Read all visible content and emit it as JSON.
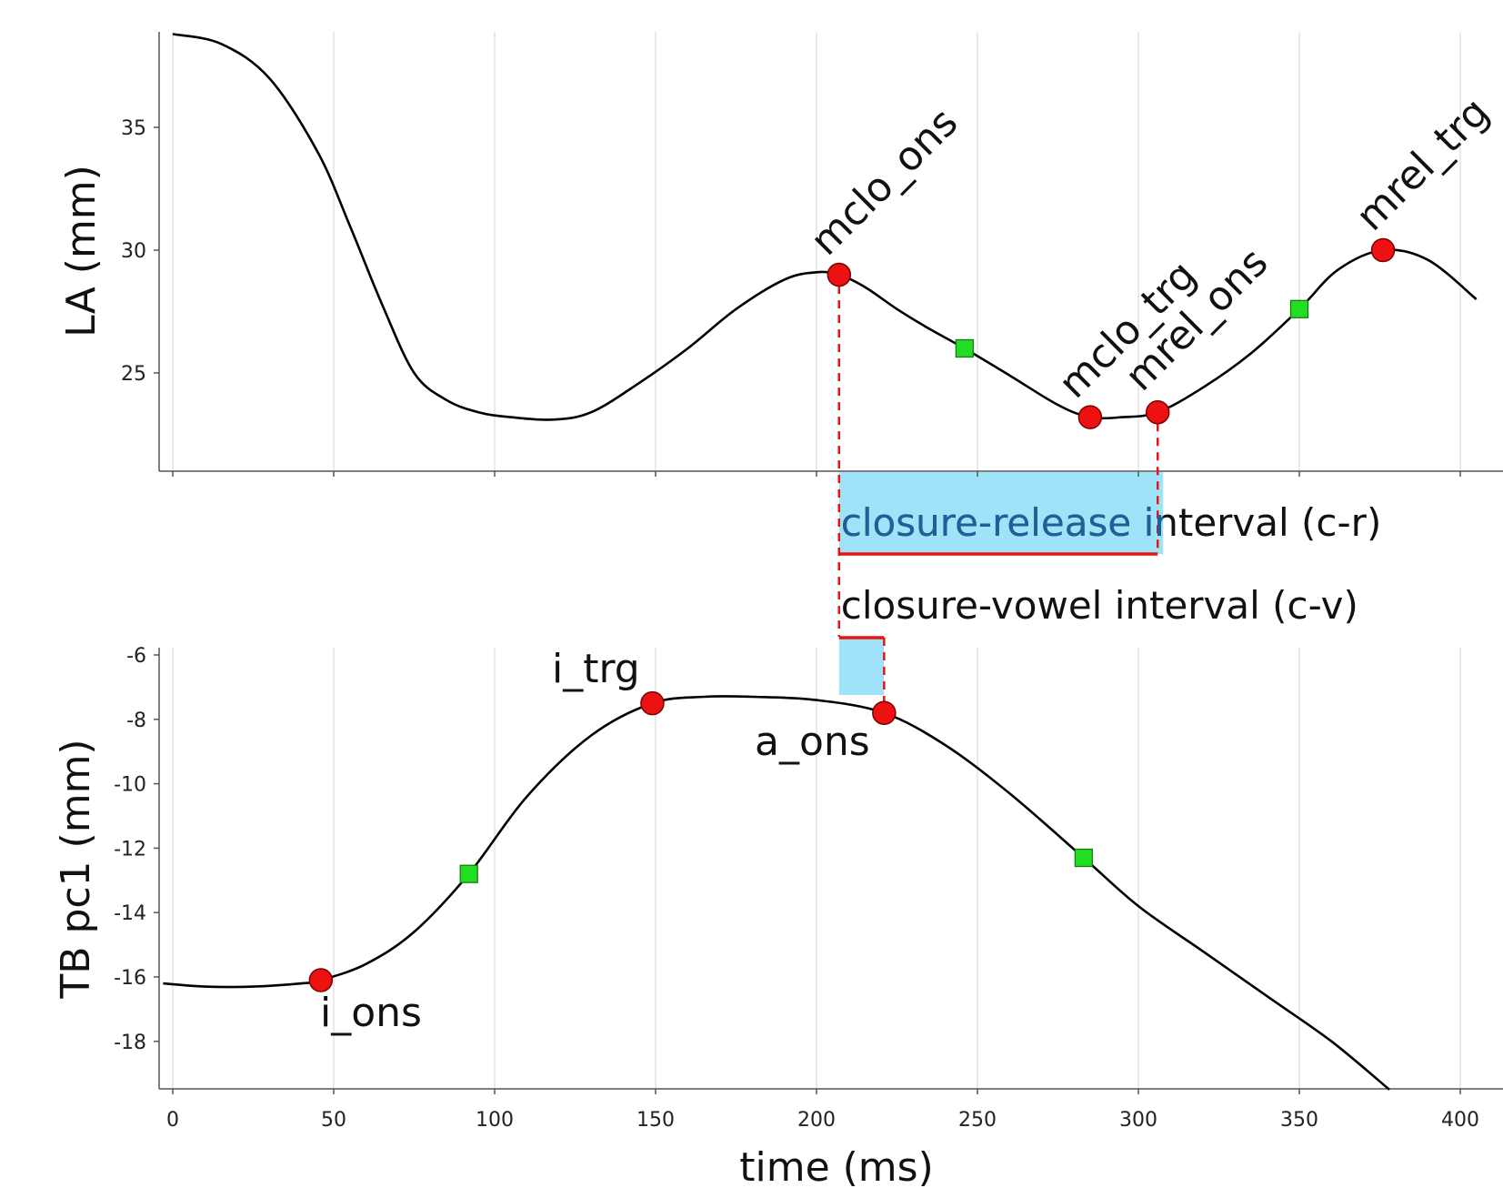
{
  "chart_data": [
    {
      "type": "line",
      "ylabel": "LA (mm)",
      "ylim": [
        21,
        39
      ],
      "yticks": [
        "25",
        "30",
        "35"
      ],
      "xlim": [
        -3,
        410
      ],
      "grid": true,
      "x": [
        0,
        15,
        30,
        45,
        55,
        65,
        75,
        85,
        95,
        105,
        118,
        130,
        145,
        160,
        175,
        190,
        200,
        207,
        215,
        225,
        235,
        246,
        260,
        275,
        285,
        295,
        306,
        320,
        335,
        350,
        362,
        376,
        390,
        405
      ],
      "y": [
        38.8,
        38.4,
        37.0,
        34.0,
        31.0,
        27.8,
        25.0,
        23.9,
        23.4,
        23.2,
        23.1,
        23.4,
        24.6,
        26.0,
        27.6,
        28.8,
        29.1,
        29.0,
        28.5,
        27.6,
        26.8,
        26.0,
        24.9,
        23.7,
        23.2,
        23.2,
        23.4,
        24.4,
        25.8,
        27.6,
        29.2,
        30.0,
        29.6,
        28.0
      ],
      "markers": [
        {
          "label": "mclo_ons",
          "x": 207,
          "y": 29.0,
          "type": "event"
        },
        {
          "label": "mclo_trg",
          "x": 285,
          "y": 23.2,
          "type": "event"
        },
        {
          "label": "mrel_ons",
          "x": 306,
          "y": 23.4,
          "type": "event"
        },
        {
          "label": "mrel_trg",
          "x": 376,
          "y": 30.0,
          "type": "event"
        },
        {
          "x": 246,
          "y": 26.0,
          "type": "peak-velocity"
        },
        {
          "x": 350,
          "y": 27.6,
          "type": "peak-velocity"
        }
      ]
    },
    {
      "type": "line",
      "xlabel": "time (ms)",
      "ylabel": "TB pc1 (mm)",
      "ylim": [
        -19.5,
        -5.8
      ],
      "yticks": [
        "-6",
        "-8",
        "-10",
        "-12",
        "-14",
        "-16",
        "-18"
      ],
      "xlim": [
        -3,
        410
      ],
      "xticks": [
        "0",
        "50",
        "100",
        "150",
        "200",
        "250",
        "300",
        "350",
        "400"
      ],
      "grid": true,
      "x": [
        -3,
        10,
        25,
        40,
        46,
        60,
        75,
        92,
        110,
        130,
        149,
        165,
        180,
        200,
        221,
        240,
        260,
        283,
        300,
        320,
        340,
        360,
        378
      ],
      "y": [
        -16.2,
        -16.3,
        -16.3,
        -16.2,
        -16.1,
        -15.6,
        -14.6,
        -12.8,
        -10.4,
        -8.5,
        -7.5,
        -7.3,
        -7.3,
        -7.4,
        -7.8,
        -8.8,
        -10.3,
        -12.3,
        -13.8,
        -15.2,
        -16.6,
        -18.0,
        -19.5
      ],
      "markers": [
        {
          "label": "i_ons",
          "x": 46,
          "y": -16.1,
          "type": "event"
        },
        {
          "label": "i_trg",
          "x": 149,
          "y": -7.5,
          "type": "event"
        },
        {
          "label": "a_ons",
          "x": 221,
          "y": -7.8,
          "type": "event"
        },
        {
          "x": 92,
          "y": -12.8,
          "type": "peak-velocity"
        },
        {
          "x": 283,
          "y": -12.3,
          "type": "peak-velocity"
        }
      ]
    }
  ],
  "intervals": [
    {
      "label": "closure-release interval (c-r)",
      "start": 207,
      "end": 306
    },
    {
      "label": "closure-vowel interval (c-v)",
      "start": 207,
      "end": 221
    }
  ],
  "colors": {
    "event_marker": "#ee1111",
    "velocity_marker": "#22dd22",
    "interval_fill": "#9ee3f7",
    "interval_line": "#ee1111",
    "curve": "#000000"
  }
}
